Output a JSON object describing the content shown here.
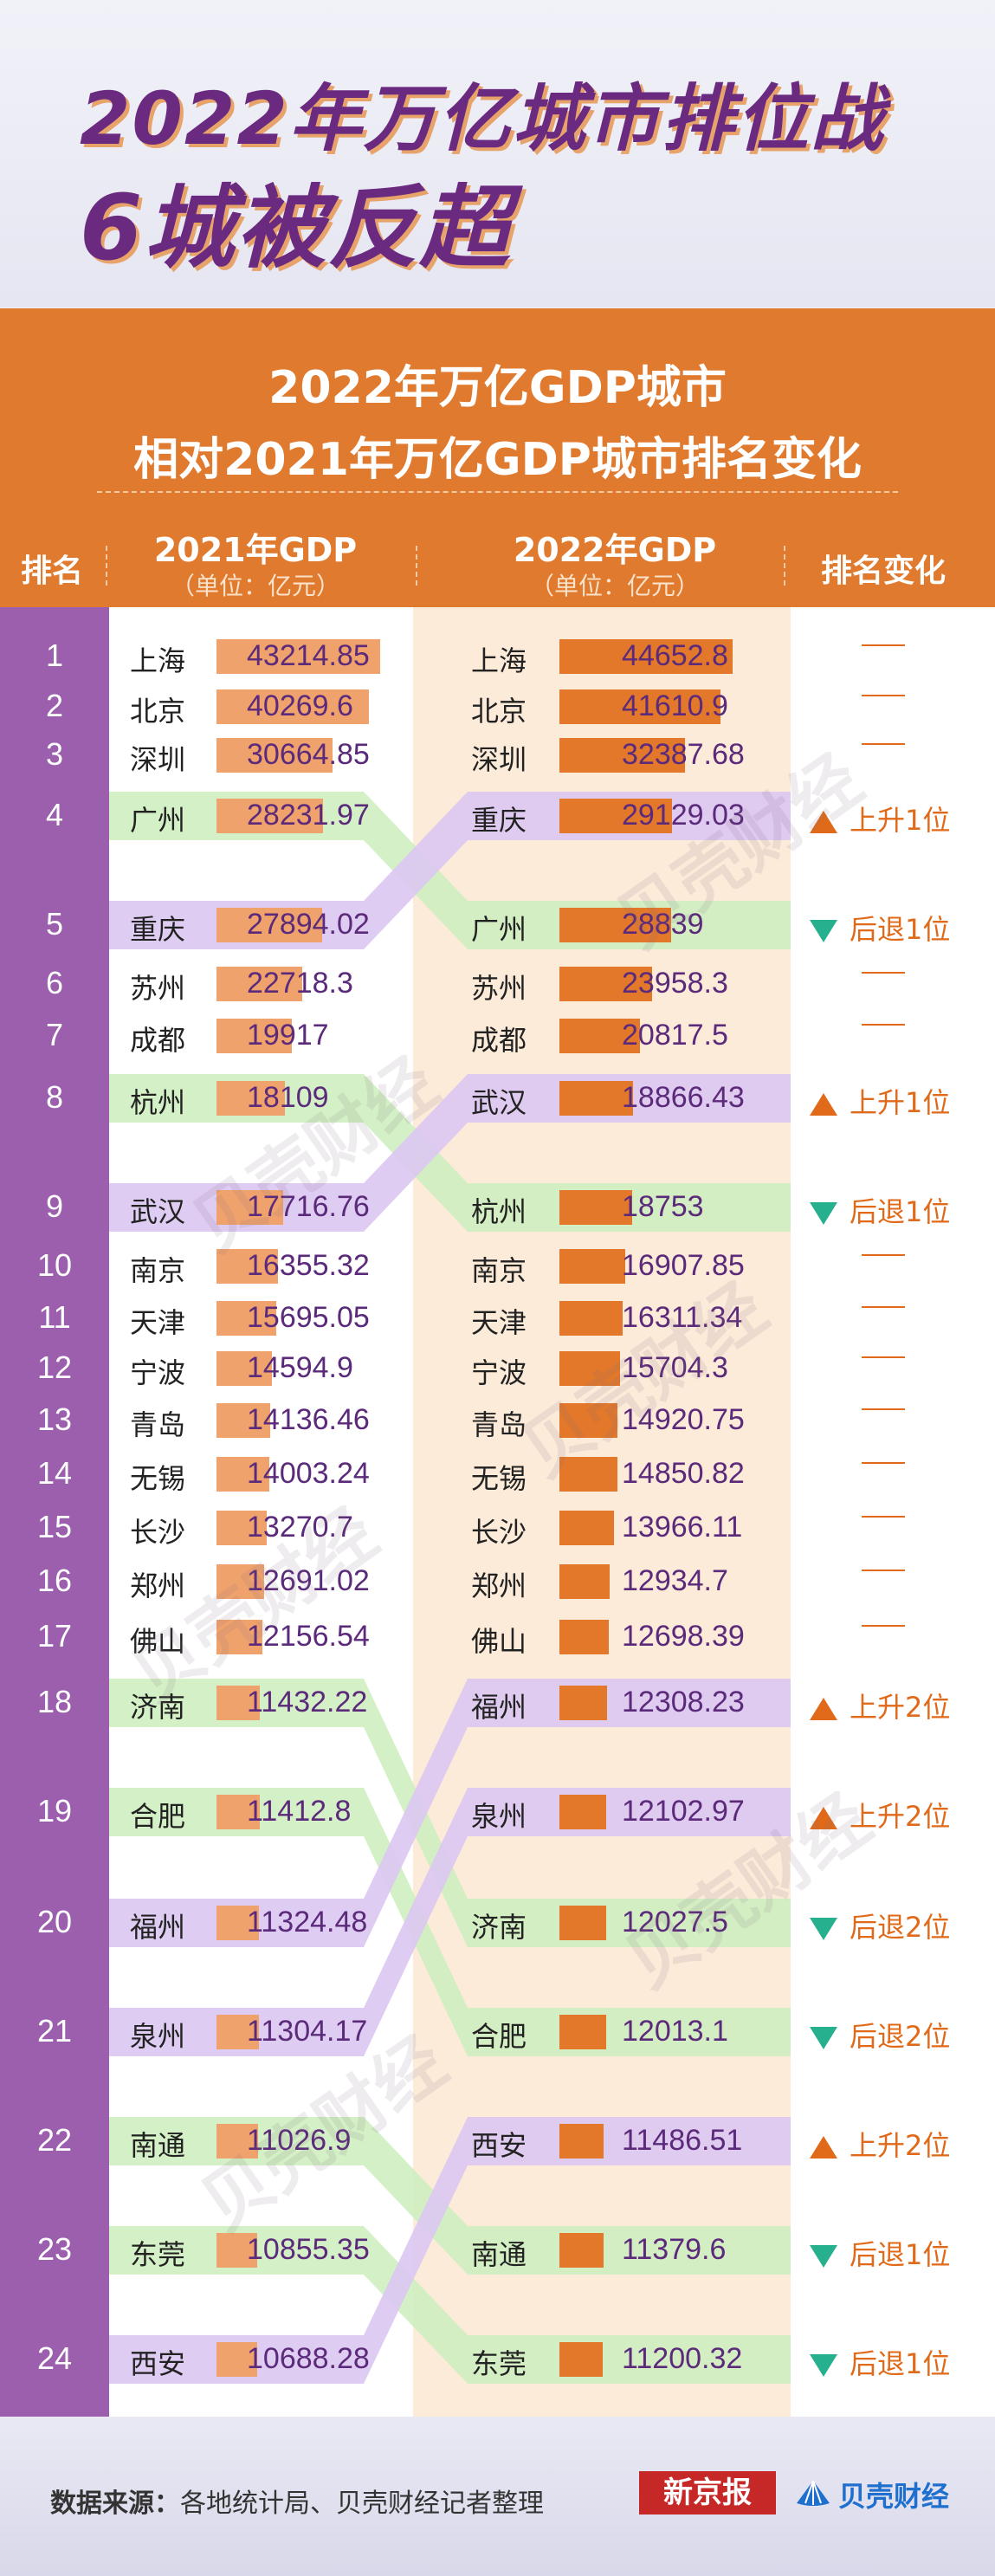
{
  "title": {
    "line1": "2022年万亿城市排位战",
    "line2": "6城被反超"
  },
  "subtitle": {
    "line1": "2022年万亿GDP城市",
    "line2": "相对2021年万亿GDP城市排名变化"
  },
  "headers": {
    "rank": "排名",
    "gdp2021": "2021年GDP",
    "gdp2022": "2022年GDP",
    "unit": "（单位：亿元）",
    "change": "排名变化"
  },
  "colors": {
    "orange": "#e07a2e",
    "purple": "#9b5fae",
    "bar2021": "#f0a26c",
    "bar2022": "#e3782b",
    "up": "#e06a1a",
    "down": "#27b08e",
    "green_band": "#cfeec0",
    "purple_band": "#dcc6f2"
  },
  "chart_data": {
    "type": "table",
    "max_value": 44652.8,
    "rows": [
      {
        "rank": "1",
        "city2021": "上海",
        "gdp2021": 43214.85,
        "city2022": "上海",
        "gdp2022": 44652.8,
        "change": "—",
        "dir": "same"
      },
      {
        "rank": "2",
        "city2021": "北京",
        "gdp2021": 40269.6,
        "city2022": "北京",
        "gdp2022": 41610.9,
        "change": "—",
        "dir": "same"
      },
      {
        "rank": "3",
        "city2021": "深圳",
        "gdp2021": 30664.85,
        "city2022": "深圳",
        "gdp2022": 32387.68,
        "change": "—",
        "dir": "same"
      },
      {
        "rank": "4",
        "city2021": "广州",
        "gdp2021": 28231.97,
        "city2022": "重庆",
        "gdp2022": 29129.03,
        "change": "上升1位",
        "dir": "up"
      },
      {
        "rank": "5",
        "city2021": "重庆",
        "gdp2021": 27894.02,
        "city2022": "广州",
        "gdp2022": 28839,
        "change": "后退1位",
        "dir": "down"
      },
      {
        "rank": "6",
        "city2021": "苏州",
        "gdp2021": 22718.3,
        "city2022": "苏州",
        "gdp2022": 23958.3,
        "change": "—",
        "dir": "same"
      },
      {
        "rank": "7",
        "city2021": "成都",
        "gdp2021": 19917.0,
        "city2022": "成都",
        "gdp2022": 20817.5,
        "change": "—",
        "dir": "same"
      },
      {
        "rank": "8",
        "city2021": "杭州",
        "gdp2021": 18109,
        "city2022": "武汉",
        "gdp2022": 18866.43,
        "change": "上升1位",
        "dir": "up"
      },
      {
        "rank": "9",
        "city2021": "武汉",
        "gdp2021": 17716.76,
        "city2022": "杭州",
        "gdp2022": 18753,
        "change": "后退1位",
        "dir": "down"
      },
      {
        "rank": "10",
        "city2021": "南京",
        "gdp2021": 16355.32,
        "city2022": "南京",
        "gdp2022": 16907.85,
        "change": "—",
        "dir": "same"
      },
      {
        "rank": "11",
        "city2021": "天津",
        "gdp2021": 15695.05,
        "city2022": "天津",
        "gdp2022": 16311.34,
        "change": "—",
        "dir": "same"
      },
      {
        "rank": "12",
        "city2021": "宁波",
        "gdp2021": 14594.9,
        "city2022": "宁波",
        "gdp2022": 15704.3,
        "change": "—",
        "dir": "same"
      },
      {
        "rank": "13",
        "city2021": "青岛",
        "gdp2021": 14136.46,
        "city2022": "青岛",
        "gdp2022": 14920.75,
        "change": "—",
        "dir": "same"
      },
      {
        "rank": "14",
        "city2021": "无锡",
        "gdp2021": 14003.24,
        "city2022": "无锡",
        "gdp2022": 14850.82,
        "change": "—",
        "dir": "same"
      },
      {
        "rank": "15",
        "city2021": "长沙",
        "gdp2021": 13270.7,
        "city2022": "长沙",
        "gdp2022": 13966.11,
        "change": "—",
        "dir": "same"
      },
      {
        "rank": "16",
        "city2021": "郑州",
        "gdp2021": 12691.02,
        "city2022": "郑州",
        "gdp2022": 12934.7,
        "change": "—",
        "dir": "same"
      },
      {
        "rank": "17",
        "city2021": "佛山",
        "gdp2021": 12156.54,
        "city2022": "佛山",
        "gdp2022": 12698.39,
        "change": "—",
        "dir": "same"
      },
      {
        "rank": "18",
        "city2021": "济南",
        "gdp2021": 11432.22,
        "city2022": "福州",
        "gdp2022": 12308.23,
        "change": "上升2位",
        "dir": "up"
      },
      {
        "rank": "19",
        "city2021": "合肥",
        "gdp2021": 11412.8,
        "city2022": "泉州",
        "gdp2022": 12102.97,
        "change": "上升2位",
        "dir": "up"
      },
      {
        "rank": "20",
        "city2021": "福州",
        "gdp2021": 11324.48,
        "city2022": "济南",
        "gdp2022": 12027.5,
        "change": "后退2位",
        "dir": "down"
      },
      {
        "rank": "21",
        "city2021": "泉州",
        "gdp2021": 11304.17,
        "city2022": "合肥",
        "gdp2022": 12013.1,
        "change": "后退2位",
        "dir": "down"
      },
      {
        "rank": "22",
        "city2021": "南通",
        "gdp2021": 11026.9,
        "city2022": "西安",
        "gdp2022": 11486.51,
        "change": "上升2位",
        "dir": "up"
      },
      {
        "rank": "23",
        "city2021": "东莞",
        "gdp2021": 10855.35,
        "city2022": "南通",
        "gdp2022": 11379.6,
        "change": "后退1位",
        "dir": "down"
      },
      {
        "rank": "24",
        "city2021": "西安",
        "gdp2021": 10688.28,
        "city2022": "东莞",
        "gdp2022": 11200.32,
        "change": "后退1位",
        "dir": "down"
      }
    ]
  },
  "footer": {
    "source_label": "数据来源：",
    "source_text": "各地统计局、贝壳财经记者整理",
    "logo1": "新京报",
    "logo2": "贝壳财经"
  },
  "watermark": "贝壳财经"
}
